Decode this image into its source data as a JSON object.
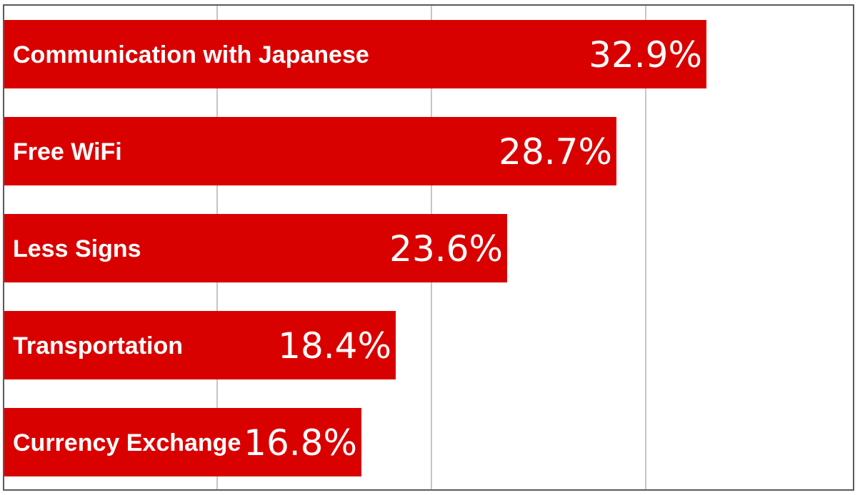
{
  "chart_data": {
    "type": "bar",
    "orientation": "horizontal",
    "categories": [
      "Communication with Japanese",
      "Free WiFi",
      "Less Signs",
      "Transportation",
      "Currency Exchange"
    ],
    "values": [
      32.9,
      28.7,
      23.6,
      18.4,
      16.8
    ],
    "value_labels": [
      "32.9%",
      "28.7%",
      "23.6%",
      "18.4%",
      "16.8%"
    ],
    "title": "",
    "xlabel": "",
    "ylabel": "",
    "xlim": [
      0,
      40
    ],
    "grid": true,
    "legend": "none",
    "colors": {
      "bar": "#d90000",
      "gridline": "#b4b4b4",
      "frame": "#5a5a5a",
      "text": "#ffffff"
    }
  }
}
